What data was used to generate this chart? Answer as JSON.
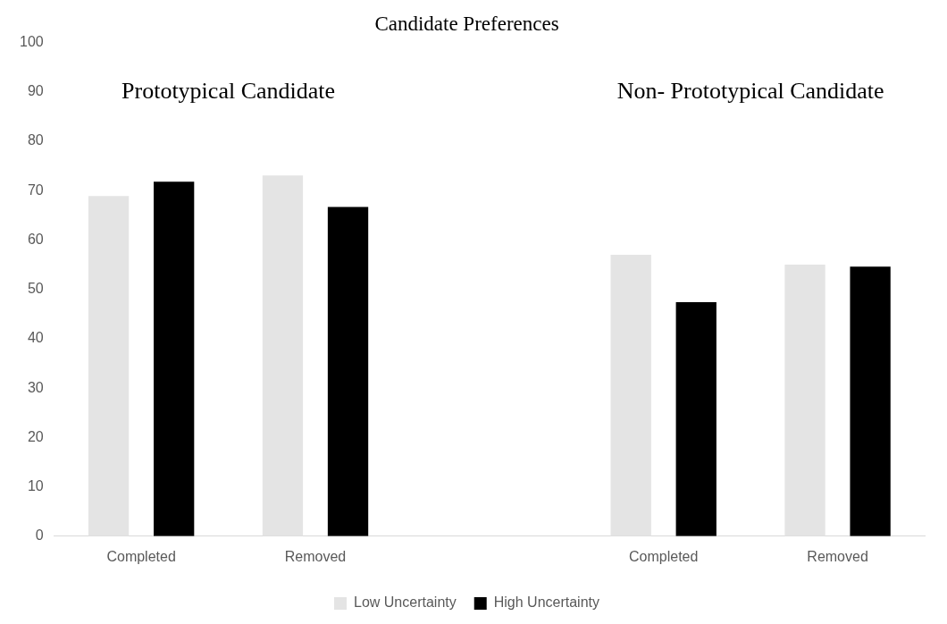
{
  "chart_data": {
    "type": "bar",
    "title": "Candidate Preferences",
    "categories": [
      "Completed",
      "Removed",
      null,
      "Completed",
      "Removed"
    ],
    "series": [
      {
        "name": "Low Uncertainty",
        "color": "#e4e4e4",
        "values": [
          68.9,
          73.1,
          null,
          57.0,
          55.0
        ]
      },
      {
        "name": "High Uncertainty",
        "color": "#000000",
        "values": [
          71.8,
          66.7,
          null,
          47.4,
          54.6
        ]
      }
    ],
    "ylim": [
      0,
      100
    ],
    "yticks": [
      0,
      10,
      20,
      30,
      40,
      50,
      60,
      70,
      80,
      90,
      100
    ],
    "grid": false,
    "legend": "bottom",
    "annotations": [
      "Prototypical Candidate",
      "Non- Prototypical Candidate"
    ]
  }
}
